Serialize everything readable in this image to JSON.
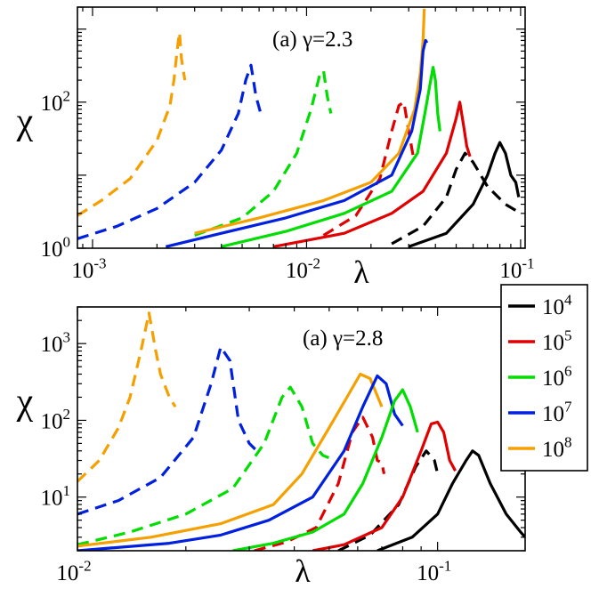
{
  "chart_data": [
    {
      "type": "line",
      "panel": "top",
      "annotation": "(a) γ=2.3",
      "xlabel": "λ",
      "ylabel": "χ",
      "xscale": "log",
      "yscale": "log",
      "xlim": [
        0.00085,
        0.105
      ],
      "ylim": [
        1,
        2000
      ],
      "xticks": [
        {
          "value": 0.001,
          "base": "10",
          "exp": "-3"
        },
        {
          "value": 0.01,
          "base": "10",
          "exp": "-2"
        },
        {
          "value": 0.1,
          "base": "10",
          "exp": "-1"
        }
      ],
      "yticks": [
        {
          "value": 1,
          "base": "10",
          "exp": "0"
        },
        {
          "value": 100,
          "base": "10",
          "exp": "2"
        }
      ],
      "series": [
        {
          "name": "10^8 annealed",
          "color": "#f5a000",
          "style": "dashed",
          "points": [
            [
              0.00085,
              2.8
            ],
            [
              0.0011,
              4.5
            ],
            [
              0.0015,
              9
            ],
            [
              0.002,
              30
            ],
            [
              0.0023,
              90
            ],
            [
              0.0024,
              200
            ],
            [
              0.0025,
              600
            ],
            [
              0.00255,
              900
            ],
            [
              0.0026,
              400
            ],
            [
              0.0027,
              200
            ]
          ]
        },
        {
          "name": "10^7 annealed",
          "color": "#0020e0",
          "style": "dashed",
          "points": [
            [
              0.00085,
              1.35
            ],
            [
              0.0013,
              2.0
            ],
            [
              0.002,
              3.5
            ],
            [
              0.003,
              8
            ],
            [
              0.004,
              22
            ],
            [
              0.0048,
              70
            ],
            [
              0.0052,
              200
            ],
            [
              0.0055,
              320
            ],
            [
              0.0058,
              120
            ],
            [
              0.0062,
              60
            ]
          ]
        },
        {
          "name": "10^6 annealed",
          "color": "#00dd00",
          "style": "dashed",
          "points": [
            [
              0.003,
              1.5
            ],
            [
              0.005,
              2.6
            ],
            [
              0.007,
              6
            ],
            [
              0.009,
              20
            ],
            [
              0.0105,
              80
            ],
            [
              0.0115,
              230
            ],
            [
              0.012,
              270
            ],
            [
              0.0125,
              120
            ],
            [
              0.013,
              70
            ]
          ]
        },
        {
          "name": "10^5 annealed",
          "color": "#e00000",
          "style": "dashed",
          "points": [
            [
              0.012,
              1.5
            ],
            [
              0.017,
              2.8
            ],
            [
              0.022,
              9
            ],
            [
              0.025,
              40
            ],
            [
              0.027,
              90
            ],
            [
              0.0285,
              100
            ],
            [
              0.03,
              40
            ],
            [
              0.0315,
              18
            ]
          ]
        },
        {
          "name": "10^4 annealed",
          "color": "#000000",
          "style": "dashed",
          "points": [
            [
              0.025,
              1.15
            ],
            [
              0.035,
              2.0
            ],
            [
              0.045,
              5
            ],
            [
              0.05,
              12
            ],
            [
              0.055,
              20
            ],
            [
              0.06,
              15
            ],
            [
              0.07,
              7
            ],
            [
              0.085,
              4.0
            ],
            [
              0.1,
              3.0
            ]
          ]
        },
        {
          "name": "10^8",
          "color": "#f5a000",
          "style": "solid",
          "points": [
            [
              0.003,
              1.6
            ],
            [
              0.006,
              2.6
            ],
            [
              0.012,
              4.5
            ],
            [
              0.02,
              8
            ],
            [
              0.027,
              20
            ],
            [
              0.032,
              80
            ],
            [
              0.034,
              250
            ],
            [
              0.035,
              700
            ],
            [
              0.0355,
              1900
            ]
          ]
        },
        {
          "name": "10^7",
          "color": "#0020e0",
          "style": "solid",
          "points": [
            [
              0.0022,
              1.05
            ],
            [
              0.004,
              1.6
            ],
            [
              0.008,
              2.6
            ],
            [
              0.015,
              4.5
            ],
            [
              0.025,
              10
            ],
            [
              0.031,
              40
            ],
            [
              0.034,
              150
            ],
            [
              0.035,
              500
            ],
            [
              0.036,
              700
            ],
            [
              0.0365,
              650
            ]
          ]
        },
        {
          "name": "10^6",
          "color": "#00dd00",
          "style": "solid",
          "points": [
            [
              0.004,
              1.05
            ],
            [
              0.008,
              1.7
            ],
            [
              0.015,
              3.0
            ],
            [
              0.025,
              6
            ],
            [
              0.033,
              20
            ],
            [
              0.036,
              80
            ],
            [
              0.038,
              200
            ],
            [
              0.039,
              300
            ],
            [
              0.04,
              200
            ],
            [
              0.041,
              70
            ],
            [
              0.042,
              40
            ]
          ]
        },
        {
          "name": "10^5",
          "color": "#e00000",
          "style": "solid",
          "points": [
            [
              0.007,
              1.05
            ],
            [
              0.015,
              1.6
            ],
            [
              0.025,
              3.0
            ],
            [
              0.035,
              6
            ],
            [
              0.045,
              20
            ],
            [
              0.05,
              60
            ],
            [
              0.052,
              100
            ],
            [
              0.054,
              50
            ],
            [
              0.056,
              25
            ],
            [
              0.058,
              18
            ]
          ]
        },
        {
          "name": "10^4",
          "color": "#000000",
          "style": "solid",
          "points": [
            [
              0.03,
              1.05
            ],
            [
              0.045,
              1.6
            ],
            [
              0.06,
              4
            ],
            [
              0.07,
              10
            ],
            [
              0.076,
              20
            ],
            [
              0.08,
              28
            ],
            [
              0.085,
              20
            ],
            [
              0.09,
              10
            ],
            [
              0.095,
              8
            ],
            [
              0.098,
              5
            ]
          ]
        }
      ]
    },
    {
      "type": "line",
      "panel": "bottom",
      "annotation": "(a) γ=2.8",
      "xlabel": "λ",
      "ylabel": "χ",
      "xscale": "log",
      "yscale": "log",
      "xlim": [
        0.01,
        0.175
      ],
      "ylim": [
        2,
        3000
      ],
      "xticks": [
        {
          "value": 0.01,
          "base": "10",
          "exp": "-2"
        },
        {
          "value": 0.1,
          "base": "10",
          "exp": "-1"
        }
      ],
      "yticks": [
        {
          "value": 10,
          "base": "10",
          "exp": "1"
        },
        {
          "value": 100,
          "base": "10",
          "exp": "2"
        },
        {
          "value": 1000,
          "base": "10",
          "exp": "3"
        }
      ],
      "series": [
        {
          "name": "10^8 annealed",
          "color": "#f5a000",
          "style": "dashed",
          "points": [
            [
              0.01,
              16
            ],
            [
              0.0115,
              30
            ],
            [
              0.013,
              80
            ],
            [
              0.014,
              200
            ],
            [
              0.015,
              800
            ],
            [
              0.0158,
              2500
            ],
            [
              0.0165,
              800
            ],
            [
              0.017,
              400
            ],
            [
              0.018,
              200
            ],
            [
              0.0187,
              150
            ]
          ]
        },
        {
          "name": "10^7 annealed",
          "color": "#0020e0",
          "style": "dashed",
          "points": [
            [
              0.01,
              6
            ],
            [
              0.013,
              9
            ],
            [
              0.017,
              18
            ],
            [
              0.021,
              60
            ],
            [
              0.0235,
              300
            ],
            [
              0.025,
              900
            ],
            [
              0.0265,
              600
            ],
            [
              0.028,
              100
            ],
            [
              0.03,
              50
            ],
            [
              0.0315,
              40
            ]
          ]
        },
        {
          "name": "10^6 annealed",
          "color": "#00dd00",
          "style": "dashed",
          "points": [
            [
              0.01,
              2.4
            ],
            [
              0.014,
              3.5
            ],
            [
              0.02,
              6
            ],
            [
              0.027,
              13
            ],
            [
              0.033,
              50
            ],
            [
              0.037,
              200
            ],
            [
              0.039,
              270
            ],
            [
              0.042,
              150
            ],
            [
              0.045,
              50
            ],
            [
              0.048,
              35
            ],
            [
              0.052,
              30
            ]
          ]
        },
        {
          "name": "10^5 annealed",
          "color": "#e00000",
          "style": "dashed",
          "points": [
            [
              0.031,
              2.0
            ],
            [
              0.038,
              2.6
            ],
            [
              0.046,
              4
            ],
            [
              0.053,
              15
            ],
            [
              0.058,
              70
            ],
            [
              0.062,
              110
            ],
            [
              0.066,
              60
            ],
            [
              0.068,
              30
            ],
            [
              0.07,
              28
            ],
            [
              0.071,
              20
            ]
          ]
        },
        {
          "name": "10^4 annealed",
          "color": "#000000",
          "style": "dashed",
          "points": [
            [
              0.053,
              2.0
            ],
            [
              0.065,
              3.2
            ],
            [
              0.078,
              8
            ],
            [
              0.087,
              25
            ],
            [
              0.093,
              40
            ],
            [
              0.098,
              30
            ],
            [
              0.1,
              20
            ]
          ]
        },
        {
          "name": "10^8",
          "color": "#f5a000",
          "style": "solid",
          "points": [
            [
              0.01,
              2.3
            ],
            [
              0.016,
              3.0
            ],
            [
              0.025,
              4.5
            ],
            [
              0.035,
              8
            ],
            [
              0.042,
              20
            ],
            [
              0.05,
              80
            ],
            [
              0.056,
              200
            ],
            [
              0.061,
              400
            ],
            [
              0.065,
              350
            ],
            [
              0.07,
              150
            ]
          ]
        },
        {
          "name": "10^7",
          "color": "#0020e0",
          "style": "solid",
          "points": [
            [
              0.01,
              2.0
            ],
            [
              0.018,
              2.5
            ],
            [
              0.025,
              3.2
            ],
            [
              0.034,
              5
            ],
            [
              0.045,
              10
            ],
            [
              0.055,
              40
            ],
            [
              0.062,
              150
            ],
            [
              0.068,
              380
            ],
            [
              0.072,
              300
            ],
            [
              0.076,
              120
            ],
            [
              0.08,
              85
            ]
          ]
        },
        {
          "name": "10^6",
          "color": "#00dd00",
          "style": "solid",
          "points": [
            [
              0.027,
              2.0
            ],
            [
              0.035,
              2.5
            ],
            [
              0.045,
              3.5
            ],
            [
              0.055,
              6
            ],
            [
              0.062,
              15
            ],
            [
              0.07,
              60
            ],
            [
              0.076,
              180
            ],
            [
              0.08,
              250
            ],
            [
              0.084,
              150
            ],
            [
              0.088,
              70
            ]
          ]
        },
        {
          "name": "10^5",
          "color": "#e00000",
          "style": "solid",
          "points": [
            [
              0.045,
              2.0
            ],
            [
              0.055,
              2.4
            ],
            [
              0.07,
              4
            ],
            [
              0.08,
              10
            ],
            [
              0.09,
              40
            ],
            [
              0.096,
              90
            ],
            [
              0.1,
              95
            ],
            [
              0.104,
              70
            ],
            [
              0.108,
              30
            ],
            [
              0.112,
              22
            ]
          ]
        },
        {
          "name": "10^4",
          "color": "#000000",
          "style": "solid",
          "points": [
            [
              0.068,
              2.0
            ],
            [
              0.085,
              3.0
            ],
            [
              0.1,
              6
            ],
            [
              0.11,
              15
            ],
            [
              0.12,
              30
            ],
            [
              0.125,
              40
            ],
            [
              0.13,
              35
            ],
            [
              0.14,
              15
            ],
            [
              0.155,
              6
            ],
            [
              0.17,
              3.5
            ],
            [
              0.175,
              3.0
            ]
          ]
        }
      ]
    }
  ],
  "legend": {
    "entries": [
      {
        "base": "10",
        "exp": "4",
        "color": "#000000"
      },
      {
        "base": "10",
        "exp": "5",
        "color": "#e00000"
      },
      {
        "base": "10",
        "exp": "6",
        "color": "#00dd00"
      },
      {
        "base": "10",
        "exp": "7",
        "color": "#0020e0"
      },
      {
        "base": "10",
        "exp": "8",
        "color": "#f5a000"
      }
    ]
  }
}
